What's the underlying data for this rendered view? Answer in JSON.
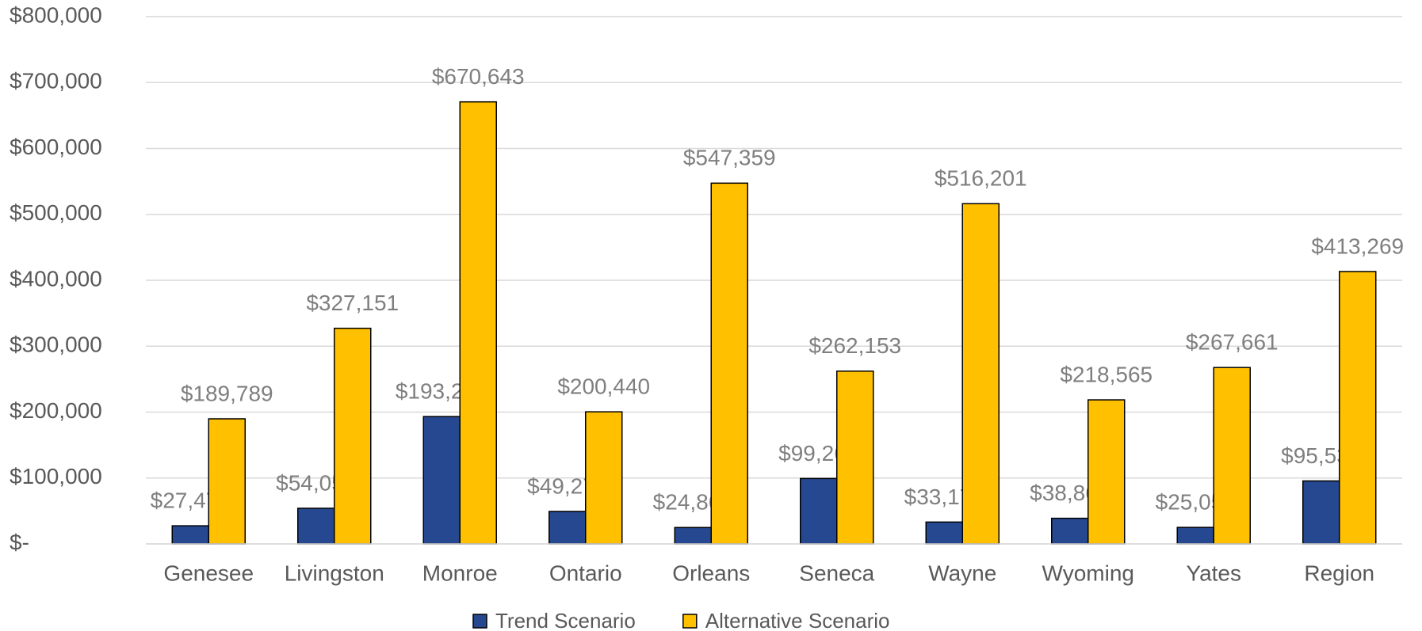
{
  "chart_data": {
    "type": "bar",
    "categories": [
      "Genesee",
      "Livingston",
      "Monroe",
      "Ontario",
      "Orleans",
      "Seneca",
      "Wayne",
      "Wyoming",
      "Yates",
      "Region"
    ],
    "series": [
      {
        "name": "Trend Scenario",
        "color": "#264891",
        "values": [
          27471,
          54056,
          193238,
          49271,
          24860,
          99262,
          33177,
          38867,
          25053,
          95532
        ],
        "value_labels": [
          "$27,471",
          "$54,056",
          "$193,238",
          "$49,271",
          "$24,860",
          "$99,262",
          "$33,177",
          "$38,867",
          "$25,053",
          "$95,532"
        ]
      },
      {
        "name": "Alternative Scenario",
        "color": "#FFC000",
        "values": [
          189789,
          327151,
          670643,
          200440,
          547359,
          262153,
          516201,
          218565,
          267661,
          413269
        ],
        "value_labels": [
          "$189,789",
          "$327,151",
          "$670,643",
          "$200,440",
          "$547,359",
          "$262,153",
          "$516,201",
          "$218,565",
          "$267,661",
          "$413,269"
        ]
      }
    ],
    "ylim": [
      0,
      800000
    ],
    "yticks": [
      {
        "value": 0,
        "label": "$-"
      },
      {
        "value": 100000,
        "label": "$100,000"
      },
      {
        "value": 200000,
        "label": "$200,000"
      },
      {
        "value": 300000,
        "label": "$300,000"
      },
      {
        "value": 400000,
        "label": "$400,000"
      },
      {
        "value": 500000,
        "label": "$500,000"
      },
      {
        "value": 600000,
        "label": "$600,000"
      },
      {
        "value": 700000,
        "label": "$700,000"
      },
      {
        "value": 800000,
        "label": "$800,000"
      }
    ],
    "grid": true,
    "legend": "bottom"
  }
}
